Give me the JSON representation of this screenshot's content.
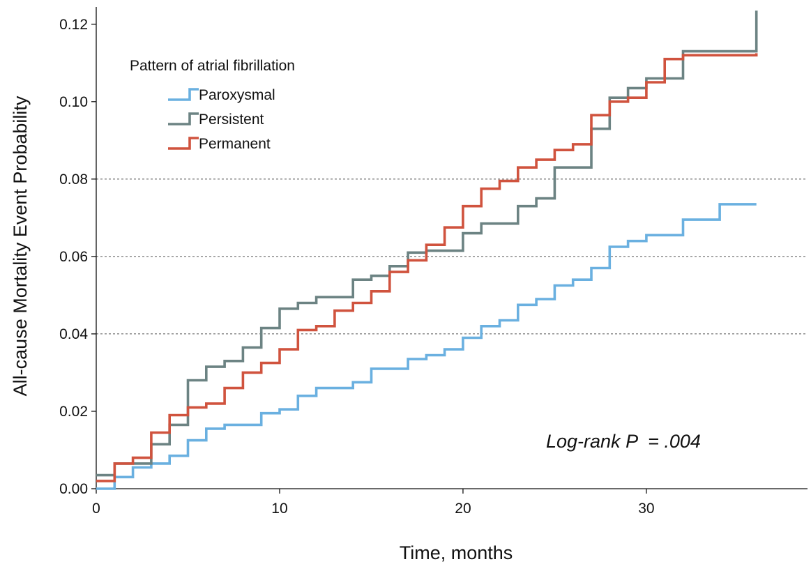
{
  "chart_data": {
    "type": "line",
    "step": true,
    "title": "",
    "xlabel": "Time, months",
    "ylabel": "All-cause Mortality Event Probability",
    "xlim": [
      0,
      37
    ],
    "ylim": [
      0,
      0.125
    ],
    "x_ticks": [
      0,
      10,
      20,
      30
    ],
    "x_tick_labels": [
      "0",
      "10",
      "20",
      "30"
    ],
    "y_ticks": [
      0.0,
      0.02,
      0.04,
      0.06,
      0.08,
      0.1,
      0.12
    ],
    "y_tick_labels": [
      "0.00",
      "0.02",
      "0.04",
      "0.06",
      "0.08",
      "0.10",
      "0.12"
    ],
    "grid": {
      "y_dashed_at": [
        0.04,
        0.06,
        0.08
      ]
    },
    "legend": {
      "title": "Pattern of atrial fibrillation",
      "position": "top-left"
    },
    "annotation": "Log-rank P  = .004",
    "series": [
      {
        "name": "Paroxysmal",
        "color": "#6ab0e0",
        "x": [
          0,
          1,
          2,
          3,
          4,
          5,
          6,
          7,
          9,
          10,
          11,
          12,
          14,
          15,
          17,
          18,
          19,
          20,
          21,
          22,
          23,
          24,
          25,
          26,
          27,
          28,
          29,
          30,
          32,
          34,
          36
        ],
        "y": [
          0.0,
          0.003,
          0.0055,
          0.0065,
          0.0085,
          0.0125,
          0.0155,
          0.0165,
          0.0195,
          0.0205,
          0.024,
          0.026,
          0.0275,
          0.031,
          0.0335,
          0.0345,
          0.036,
          0.039,
          0.042,
          0.0435,
          0.0475,
          0.049,
          0.0525,
          0.054,
          0.057,
          0.0625,
          0.064,
          0.0655,
          0.0695,
          0.0735,
          0.0735
        ]
      },
      {
        "name": "Persistent",
        "color": "#6c8383",
        "x": [
          0,
          1,
          3,
          4,
          5,
          6,
          7,
          8,
          9,
          10,
          11,
          12,
          14,
          15,
          16,
          17,
          18,
          19,
          20,
          21,
          22,
          23,
          24,
          25,
          27,
          28,
          29,
          30,
          31,
          32,
          36
        ],
        "y": [
          0.0035,
          0.0065,
          0.0115,
          0.0165,
          0.028,
          0.0315,
          0.033,
          0.0365,
          0.0415,
          0.0465,
          0.048,
          0.0495,
          0.054,
          0.055,
          0.0575,
          0.061,
          0.0615,
          0.0615,
          0.066,
          0.0685,
          0.0685,
          0.073,
          0.075,
          0.083,
          0.093,
          0.101,
          0.1035,
          0.106,
          0.106,
          0.113,
          0.1235
        ]
      },
      {
        "name": "Permanent",
        "color": "#d0533e",
        "x": [
          0,
          1,
          2,
          3,
          4,
          5,
          6,
          7,
          8,
          9,
          10,
          11,
          12,
          13,
          14,
          15,
          16,
          17,
          18,
          19,
          20,
          21,
          22,
          23,
          24,
          25,
          26,
          27,
          28,
          29,
          30,
          31,
          32,
          36
        ],
        "y": [
          0.002,
          0.0065,
          0.008,
          0.0145,
          0.019,
          0.021,
          0.022,
          0.026,
          0.03,
          0.0325,
          0.036,
          0.041,
          0.042,
          0.046,
          0.048,
          0.051,
          0.056,
          0.059,
          0.063,
          0.0675,
          0.073,
          0.0775,
          0.0795,
          0.083,
          0.085,
          0.0875,
          0.089,
          0.0965,
          0.1,
          0.101,
          0.105,
          0.111,
          0.112,
          0.1125
        ]
      }
    ]
  }
}
